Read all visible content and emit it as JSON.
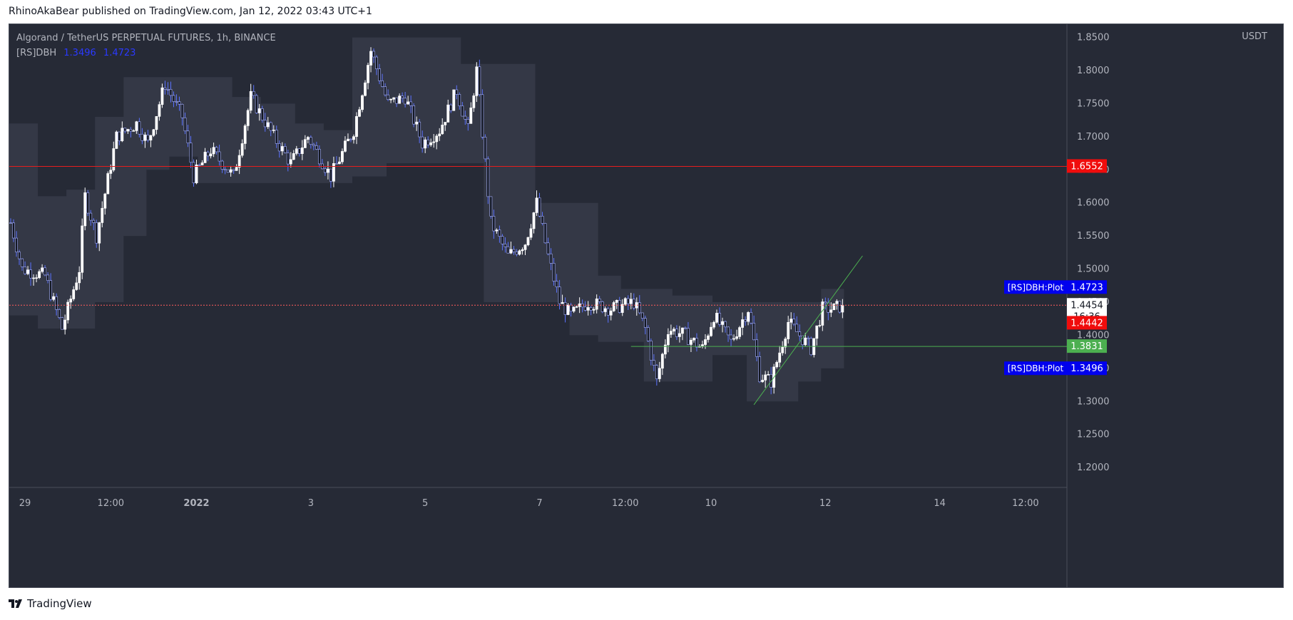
{
  "header": {
    "published_by": "RhinoAkaBear published on TradingView.com, Jan 12, 2022 03:43 UTC+1"
  },
  "chart": {
    "symbol": "Algorand / TetherUS PERPETUAL FUTURES, 1h, BINANCE",
    "indicator_name": "[RS]DBH",
    "indicator_low": "1.3496",
    "indicator_high": "1.4723",
    "currency": "USDT"
  },
  "footer": {
    "brand": "TradingView"
  },
  "colors": {
    "background": "#262a36",
    "band_fill": "#363a48",
    "bull_candle": "#ffffff",
    "bear_candle": "#131722",
    "wick": "#ffffff",
    "indicator_blue": "#2a39ff",
    "red_line": "#e61d1d",
    "green_line": "#4caf50",
    "current_price_line": "#ff5c5c"
  },
  "chart_data": {
    "type": "candlestick",
    "interval": "1h",
    "y_axis": {
      "min": 1.17,
      "max": 1.87,
      "ticks": [
        "1.2000",
        "1.2500",
        "1.3000",
        "1.3500",
        "1.4000",
        "1.4500",
        "1.5000",
        "1.5500",
        "1.6000",
        "1.6500",
        "1.7000",
        "1.7500",
        "1.8000",
        "1.8500"
      ],
      "position": "right"
    },
    "x_axis": {
      "tick_labels": [
        {
          "label": "29",
          "index": 5
        },
        {
          "label": "12:00",
          "index": 35
        },
        {
          "label": "2022",
          "index": 65,
          "bold": true
        },
        {
          "label": "3",
          "index": 105
        },
        {
          "label": "5",
          "index": 145
        },
        {
          "label": "7",
          "index": 185
        },
        {
          "label": "12:00",
          "index": 215
        },
        {
          "label": "10",
          "index": 245
        },
        {
          "label": "12",
          "index": 285
        },
        {
          "label": "14",
          "index": 325
        },
        {
          "label": "12:00",
          "index": 355
        }
      ],
      "total_slots": 370
    },
    "price_path_knots": [
      {
        "i": 0,
        "p": 1.57
      },
      {
        "i": 4,
        "p": 1.5
      },
      {
        "i": 12,
        "p": 1.49
      },
      {
        "i": 18,
        "p": 1.41
      },
      {
        "i": 24,
        "p": 1.5
      },
      {
        "i": 26,
        "p": 1.61
      },
      {
        "i": 30,
        "p": 1.55
      },
      {
        "i": 37,
        "p": 1.7
      },
      {
        "i": 44,
        "p": 1.72
      },
      {
        "i": 48,
        "p": 1.69
      },
      {
        "i": 54,
        "p": 1.78
      },
      {
        "i": 60,
        "p": 1.73
      },
      {
        "i": 64,
        "p": 1.64
      },
      {
        "i": 70,
        "p": 1.68
      },
      {
        "i": 78,
        "p": 1.64
      },
      {
        "i": 84,
        "p": 1.76
      },
      {
        "i": 92,
        "p": 1.7
      },
      {
        "i": 98,
        "p": 1.66
      },
      {
        "i": 104,
        "p": 1.7
      },
      {
        "i": 112,
        "p": 1.64
      },
      {
        "i": 120,
        "p": 1.71
      },
      {
        "i": 126,
        "p": 1.83
      },
      {
        "i": 132,
        "p": 1.75
      },
      {
        "i": 138,
        "p": 1.76
      },
      {
        "i": 144,
        "p": 1.69
      },
      {
        "i": 150,
        "p": 1.71
      },
      {
        "i": 156,
        "p": 1.77
      },
      {
        "i": 160,
        "p": 1.71
      },
      {
        "i": 163,
        "p": 1.8
      },
      {
        "i": 166,
        "p": 1.66
      },
      {
        "i": 168,
        "p": 1.57
      },
      {
        "i": 174,
        "p": 1.52
      },
      {
        "i": 180,
        "p": 1.54
      },
      {
        "i": 184,
        "p": 1.6
      },
      {
        "i": 188,
        "p": 1.52
      },
      {
        "i": 192,
        "p": 1.45
      },
      {
        "i": 196,
        "p": 1.43
      },
      {
        "i": 202,
        "p": 1.45
      },
      {
        "i": 210,
        "p": 1.44
      },
      {
        "i": 218,
        "p": 1.45
      },
      {
        "i": 222,
        "p": 1.41
      },
      {
        "i": 226,
        "p": 1.33
      },
      {
        "i": 230,
        "p": 1.41
      },
      {
        "i": 236,
        "p": 1.4
      },
      {
        "i": 242,
        "p": 1.38
      },
      {
        "i": 246,
        "p": 1.43
      },
      {
        "i": 252,
        "p": 1.39
      },
      {
        "i": 258,
        "p": 1.44
      },
      {
        "i": 262,
        "p": 1.34
      },
      {
        "i": 266,
        "p": 1.33
      },
      {
        "i": 272,
        "p": 1.42
      },
      {
        "i": 280,
        "p": 1.38
      },
      {
        "i": 284,
        "p": 1.44
      },
      {
        "i": 288,
        "p": 1.44
      },
      {
        "i": 291,
        "p": 1.4454
      }
    ],
    "band_steps": [
      {
        "from": 0,
        "to": 10,
        "upper": 1.72,
        "lower": 1.43
      },
      {
        "from": 10,
        "to": 20,
        "upper": 1.61,
        "lower": 1.41
      },
      {
        "from": 20,
        "to": 30,
        "upper": 1.62,
        "lower": 1.41
      },
      {
        "from": 30,
        "to": 40,
        "upper": 1.73,
        "lower": 1.45
      },
      {
        "from": 40,
        "to": 48,
        "upper": 1.79,
        "lower": 1.55
      },
      {
        "from": 48,
        "to": 56,
        "upper": 1.79,
        "lower": 1.65
      },
      {
        "from": 56,
        "to": 66,
        "upper": 1.79,
        "lower": 1.67
      },
      {
        "from": 66,
        "to": 78,
        "upper": 1.79,
        "lower": 1.63
      },
      {
        "from": 78,
        "to": 88,
        "upper": 1.76,
        "lower": 1.63
      },
      {
        "from": 88,
        "to": 100,
        "upper": 1.75,
        "lower": 1.63
      },
      {
        "from": 100,
        "to": 110,
        "upper": 1.72,
        "lower": 1.63
      },
      {
        "from": 110,
        "to": 120,
        "upper": 1.71,
        "lower": 1.63
      },
      {
        "from": 120,
        "to": 132,
        "upper": 1.85,
        "lower": 1.64
      },
      {
        "from": 132,
        "to": 146,
        "upper": 1.85,
        "lower": 1.66
      },
      {
        "from": 146,
        "to": 158,
        "upper": 1.85,
        "lower": 1.66
      },
      {
        "from": 158,
        "to": 166,
        "upper": 1.81,
        "lower": 1.66
      },
      {
        "from": 166,
        "to": 184,
        "upper": 1.81,
        "lower": 1.45
      },
      {
        "from": 184,
        "to": 196,
        "upper": 1.6,
        "lower": 1.45
      },
      {
        "from": 196,
        "to": 206,
        "upper": 1.6,
        "lower": 1.4
      },
      {
        "from": 206,
        "to": 214,
        "upper": 1.49,
        "lower": 1.39
      },
      {
        "from": 214,
        "to": 222,
        "upper": 1.47,
        "lower": 1.39
      },
      {
        "from": 222,
        "to": 232,
        "upper": 1.47,
        "lower": 1.33
      },
      {
        "from": 232,
        "to": 246,
        "upper": 1.46,
        "lower": 1.33
      },
      {
        "from": 246,
        "to": 258,
        "upper": 1.45,
        "lower": 1.37
      },
      {
        "from": 258,
        "to": 266,
        "upper": 1.45,
        "lower": 1.3
      },
      {
        "from": 266,
        "to": 276,
        "upper": 1.45,
        "lower": 1.3
      },
      {
        "from": 276,
        "to": 284,
        "upper": 1.45,
        "lower": 1.33
      },
      {
        "from": 284,
        "to": 292,
        "upper": 1.47,
        "lower": 1.35
      }
    ],
    "horizontal_lines": [
      {
        "name": "resistance",
        "price": 1.6552,
        "color": "#e61d1d",
        "label": "1.6552",
        "label_bg": "#f00c0c",
        "style": "solid"
      },
      {
        "name": "current-price",
        "price": 1.4454,
        "color": "#ff5c5c",
        "label": "1.4454",
        "sublabel": "16:36",
        "label_bg": "#ffffff",
        "label_color": "#131722",
        "style": "dotted"
      },
      {
        "name": "support",
        "price": 1.3831,
        "color": "#4caf50",
        "label": "1.3831",
        "label_bg": "#4caf50",
        "style": "solid",
        "start_index": 217
      }
    ],
    "price_labels": [
      {
        "name": "dbh-plot-high",
        "price": 1.4723,
        "text": "[RS]DBH:Plot",
        "value": "1.4723",
        "bg": "#0000ee"
      },
      {
        "name": "dbh-low-red",
        "price": 1.4442,
        "value": "1.4442",
        "bg": "#f00c0c",
        "offset_y": 24
      },
      {
        "name": "dbh-plot-low",
        "price": 1.3496,
        "text": "[RS]DBH:Plot",
        "value": "1.3496",
        "bg": "#0000ee"
      }
    ],
    "trend_line": {
      "from": {
        "i": 260,
        "p": 1.295
      },
      "to": {
        "i": 298,
        "p": 1.52
      },
      "color": "#4caf50"
    },
    "last_price": "1.4454",
    "countdown": "16:36"
  }
}
